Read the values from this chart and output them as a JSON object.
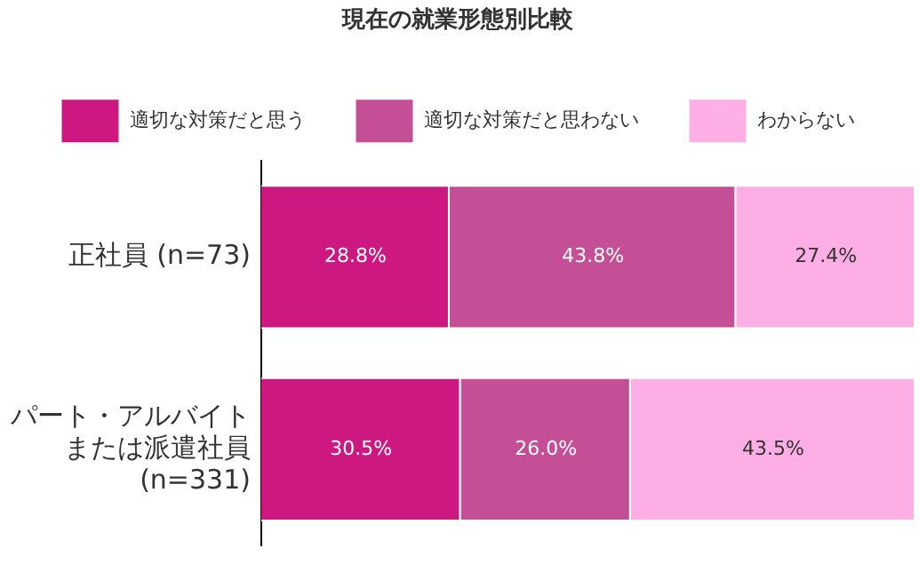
{
  "chart_data": {
    "type": "bar",
    "orientation": "horizontal",
    "stacked": true,
    "title": "現在の就業形態別比較",
    "categories": [
      "正社員 (n=73)",
      "パート・アルバイトまたは派遣社員 (n=331)"
    ],
    "series": [
      {
        "name": "適切な対策だと思う",
        "color": "#cd1882",
        "values": [
          28.8,
          30.5
        ],
        "value_labels": [
          "28.8%",
          "30.5%"
        ]
      },
      {
        "name": "適切な対策だと思わない",
        "color": "#c44f97",
        "values": [
          43.8,
          26.0
        ],
        "value_labels": [
          "43.8%",
          "26.0%"
        ]
      },
      {
        "name": "わからない",
        "color": "#fdaee4",
        "values": [
          27.4,
          43.5
        ],
        "value_labels": [
          "27.4%",
          "43.5%"
        ]
      }
    ],
    "tick_labels": "y",
    "grid": false,
    "legend": "top"
  }
}
